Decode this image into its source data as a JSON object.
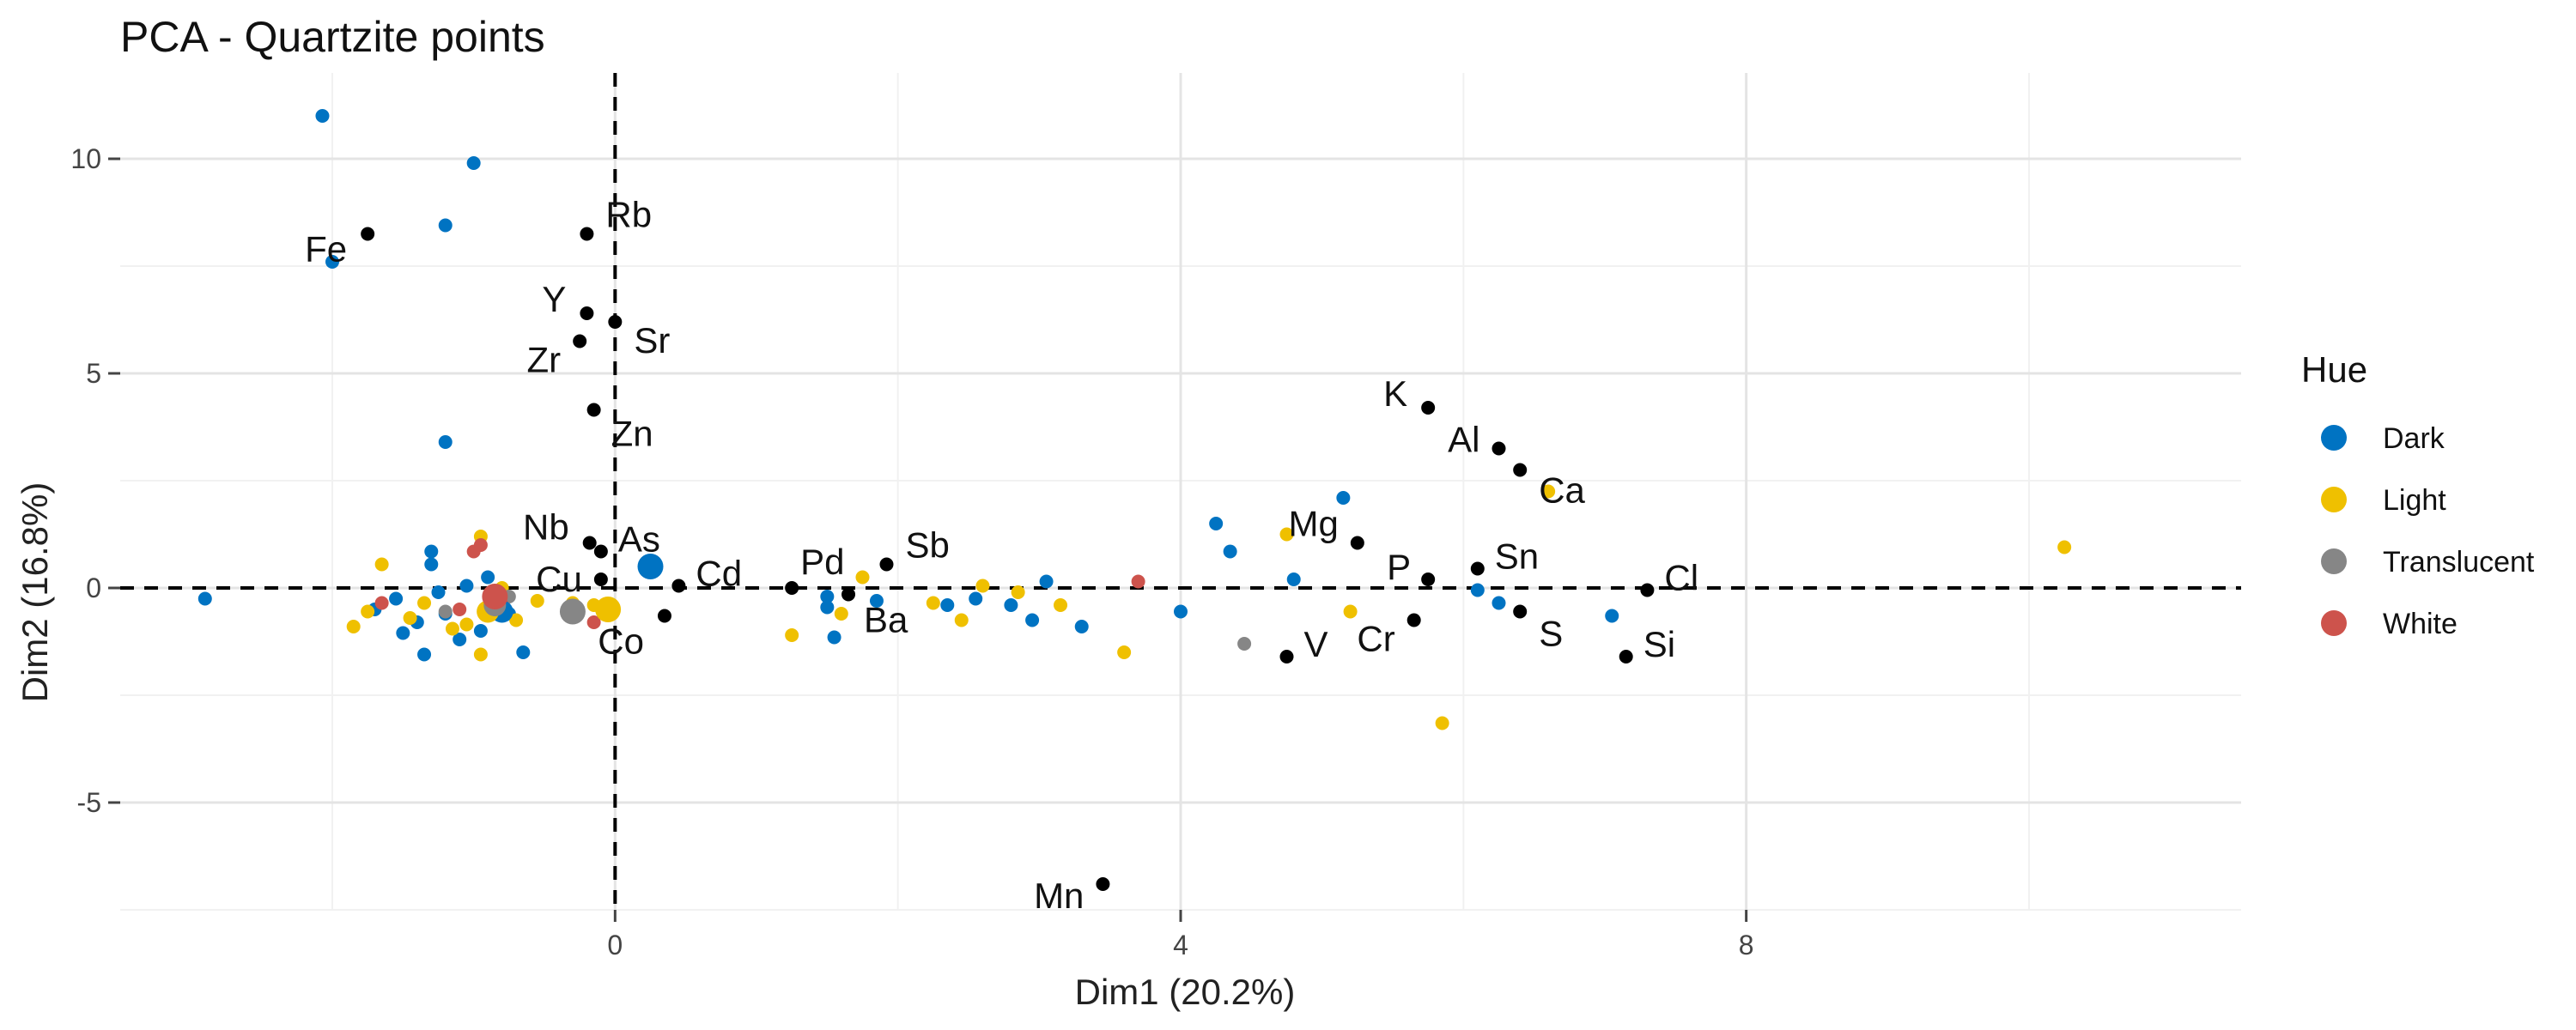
{
  "chart_data": {
    "type": "scatter",
    "title": "PCA - Quartzite points",
    "xlabel": "Dim1 (20.2%)",
    "ylabel": "Dim2 (16.8%)",
    "xlim": [
      -3.5,
      11.5
    ],
    "ylim": [
      -7.5,
      12.0
    ],
    "x_ticks": [
      0,
      4,
      8
    ],
    "x_tick_labels": [
      "0",
      "4",
      "8"
    ],
    "y_ticks": [
      -5,
      0,
      5,
      10
    ],
    "y_tick_labels": [
      "-5",
      "0",
      "5",
      "10"
    ],
    "grid": true,
    "reference_lines": {
      "x": 0,
      "y": 0,
      "style": "dashed"
    },
    "legend": {
      "title": "Hue",
      "position": "right",
      "entries": [
        {
          "name": "Dark",
          "color": "#0073C2"
        },
        {
          "name": "Light",
          "color": "#EFC000"
        },
        {
          "name": "Translucent",
          "color": "#868686"
        },
        {
          "name": "White",
          "color": "#CD534C"
        }
      ]
    },
    "variables": [
      {
        "label": "Fe",
        "x": -1.75,
        "y": 8.25
      },
      {
        "label": "Rb",
        "x": -0.2,
        "y": 8.25
      },
      {
        "label": "Y",
        "x": -0.2,
        "y": 6.4
      },
      {
        "label": "Sr",
        "x": 0.0,
        "y": 6.2
      },
      {
        "label": "Zr",
        "x": -0.25,
        "y": 5.75
      },
      {
        "label": "Zn",
        "x": -0.15,
        "y": 4.15
      },
      {
        "label": "Nb",
        "x": -0.18,
        "y": 1.05
      },
      {
        "label": "As",
        "x": -0.1,
        "y": 0.85
      },
      {
        "label": "Cu",
        "x": -0.1,
        "y": 0.2
      },
      {
        "label": "Cd",
        "x": 0.45,
        "y": 0.05
      },
      {
        "label": "Co",
        "x": 0.35,
        "y": -0.65
      },
      {
        "label": "Pd",
        "x": 1.25,
        "y": 0.0
      },
      {
        "label": "Sb",
        "x": 1.92,
        "y": 0.55
      },
      {
        "label": "Ba",
        "x": 1.65,
        "y": -0.15
      },
      {
        "label": "K",
        "x": 5.75,
        "y": 4.2
      },
      {
        "label": "Al",
        "x": 6.25,
        "y": 3.25
      },
      {
        "label": "Ca",
        "x": 6.4,
        "y": 2.75
      },
      {
        "label": "Mg",
        "x": 5.25,
        "y": 1.05
      },
      {
        "label": "P",
        "x": 5.75,
        "y": 0.2
      },
      {
        "label": "Sn",
        "x": 6.1,
        "y": 0.45
      },
      {
        "label": "Cl",
        "x": 7.3,
        "y": -0.05
      },
      {
        "label": "S",
        "x": 6.4,
        "y": -0.55
      },
      {
        "label": "Cr",
        "x": 5.65,
        "y": -0.75
      },
      {
        "label": "V",
        "x": 4.75,
        "y": -1.6
      },
      {
        "label": "Si",
        "x": 7.15,
        "y": -1.6
      },
      {
        "label": "Mn",
        "x": 3.45,
        "y": -6.9
      }
    ],
    "series": [
      {
        "name": "Dark",
        "color": "#0073C2",
        "points": [
          [
            -2.07,
            11.0
          ],
          [
            -1.0,
            9.9
          ],
          [
            -1.2,
            8.45
          ],
          [
            -2.0,
            7.6
          ],
          [
            -1.2,
            3.4
          ],
          [
            -2.9,
            -0.25
          ],
          [
            -1.3,
            0.85
          ],
          [
            -1.3,
            0.55
          ],
          [
            -1.25,
            -0.1
          ],
          [
            -1.4,
            -0.8
          ],
          [
            -1.5,
            -1.05
          ],
          [
            -1.35,
            -1.55
          ],
          [
            -1.1,
            -1.2
          ],
          [
            -1.05,
            0.05
          ],
          [
            -0.9,
            0.25
          ],
          [
            -0.75,
            -0.6
          ],
          [
            -0.95,
            -1.0
          ],
          [
            -0.65,
            -1.5
          ],
          [
            -1.7,
            -0.5
          ],
          [
            -1.55,
            -0.25
          ],
          [
            -1.2,
            -0.6
          ],
          [
            -0.85,
            -0.4
          ],
          [
            1.5,
            -0.2
          ],
          [
            1.5,
            -0.45
          ],
          [
            1.55,
            -1.15
          ],
          [
            1.85,
            -0.3
          ],
          [
            2.35,
            -0.4
          ],
          [
            2.55,
            -0.25
          ],
          [
            2.8,
            -0.4
          ],
          [
            2.95,
            -0.75
          ],
          [
            3.05,
            0.15
          ],
          [
            3.3,
            -0.9
          ],
          [
            4.0,
            -0.55
          ],
          [
            4.25,
            1.5
          ],
          [
            4.35,
            0.85
          ],
          [
            4.8,
            0.2
          ],
          [
            5.15,
            2.1
          ],
          [
            6.1,
            -0.05
          ],
          [
            6.25,
            -0.35
          ],
          [
            7.05,
            -0.65
          ]
        ],
        "centroid": [
          -0.8,
          -0.55
        ],
        "group_center": [
          0.25,
          0.5
        ]
      },
      {
        "name": "Light",
        "color": "#EFC000",
        "points": [
          [
            -1.65,
            0.55
          ],
          [
            -1.75,
            -0.55
          ],
          [
            -1.85,
            -0.9
          ],
          [
            -1.45,
            -0.7
          ],
          [
            -1.35,
            -0.35
          ],
          [
            -1.15,
            -0.95
          ],
          [
            -1.05,
            -0.85
          ],
          [
            -0.95,
            -1.55
          ],
          [
            -0.85,
            -0.6
          ],
          [
            -0.95,
            1.2
          ],
          [
            -0.8,
            0.0
          ],
          [
            -0.7,
            -0.75
          ],
          [
            -0.55,
            -0.3
          ],
          [
            -0.3,
            -0.35
          ],
          [
            -0.15,
            -0.4
          ],
          [
            1.25,
            -1.1
          ],
          [
            1.6,
            -0.6
          ],
          [
            1.75,
            0.25
          ],
          [
            2.25,
            -0.35
          ],
          [
            2.45,
            -0.75
          ],
          [
            2.6,
            0.05
          ],
          [
            2.85,
            -0.1
          ],
          [
            3.15,
            -0.4
          ],
          [
            3.6,
            -1.5
          ],
          [
            4.75,
            1.25
          ],
          [
            5.2,
            -0.55
          ],
          [
            5.85,
            -3.15
          ],
          [
            6.6,
            2.25
          ],
          [
            10.25,
            0.95
          ]
        ],
        "centroid": [
          -0.9,
          -0.55
        ],
        "group_center": [
          -0.05,
          -0.5
        ]
      },
      {
        "name": "Translucent",
        "color": "#868686",
        "points": [
          [
            -0.9,
            -0.45
          ],
          [
            -0.75,
            -0.2
          ],
          [
            -1.2,
            -0.55
          ],
          [
            4.45,
            -1.3
          ]
        ],
        "centroid": [
          -0.85,
          -0.4
        ],
        "group_center": [
          -0.3,
          -0.55
        ]
      },
      {
        "name": "White",
        "color": "#CD534C",
        "points": [
          [
            -1.65,
            -0.35
          ],
          [
            -1.0,
            0.85
          ],
          [
            -0.95,
            1.0
          ],
          [
            -0.8,
            -0.4
          ],
          [
            -0.15,
            -0.8
          ],
          [
            -1.1,
            -0.5
          ],
          [
            3.7,
            0.15
          ]
        ],
        "centroid": [
          -0.85,
          -0.2
        ],
        "group_center": [
          -0.85,
          -0.2
        ]
      }
    ]
  }
}
